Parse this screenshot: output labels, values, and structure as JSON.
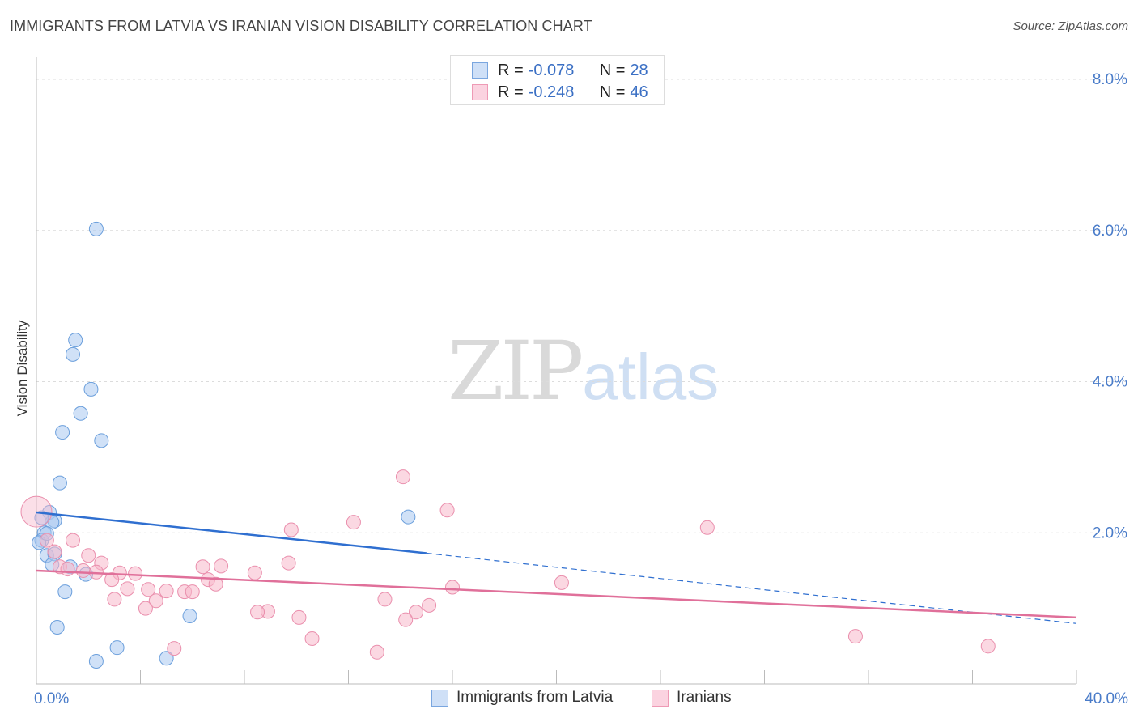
{
  "header": {
    "title": "IMMIGRANTS FROM LATVIA VS IRANIAN VISION DISABILITY CORRELATION CHART",
    "source": "Source: ZipAtlas.com"
  },
  "watermark": {
    "zip": "ZIP",
    "atlas": "atlas"
  },
  "legend": {
    "rows": [
      {
        "r_label": "R = ",
        "r_value": "-0.078",
        "n_label": "N = ",
        "n_value": "28",
        "color": "#a9c8f0"
      },
      {
        "r_label": "R = ",
        "r_value": "-0.248",
        "n_label": "N = ",
        "n_value": "46",
        "color": "#f7b8cb"
      }
    ]
  },
  "bottom_legend": {
    "items": [
      {
        "label": "Immigrants from Latvia",
        "color": "#a9c8f0"
      },
      {
        "label": "Iranians",
        "color": "#f7b8cb"
      }
    ]
  },
  "chart_data": {
    "type": "scatter",
    "title": "IMMIGRANTS FROM LATVIA VS IRANIAN VISION DISABILITY CORRELATION CHART",
    "xlabel": "",
    "ylabel": "Vision Disability",
    "xlim": [
      0,
      40
    ],
    "ylim": [
      0,
      8.3
    ],
    "x_ticks": [
      {
        "value": 0,
        "label": "0.0%"
      },
      {
        "value": 40,
        "label": "40.0%"
      }
    ],
    "y_ticks": [
      {
        "value": 2,
        "label": "2.0%"
      },
      {
        "value": 4,
        "label": "4.0%"
      },
      {
        "value": 6,
        "label": "6.0%"
      },
      {
        "value": 8,
        "label": "8.0%"
      }
    ],
    "grid": "horizontal dashed",
    "legend_position": "top-center",
    "series": [
      {
        "name": "Immigrants from Latvia",
        "color": "#a9c8f0",
        "stroke": "#6b9fdc",
        "trend_color": "#2f6fd0",
        "trend": {
          "x0": 0,
          "y0": 2.27,
          "x1": 15,
          "y1": 1.73,
          "dash_x1": 40,
          "dash_y1": 0.8
        },
        "points": [
          [
            2.3,
            6.02
          ],
          [
            1.5,
            4.55
          ],
          [
            1.4,
            4.36
          ],
          [
            2.1,
            3.9
          ],
          [
            1.7,
            3.58
          ],
          [
            1.0,
            3.33
          ],
          [
            2.5,
            3.22
          ],
          [
            0.9,
            2.66
          ],
          [
            0.5,
            2.27
          ],
          [
            0.7,
            2.16
          ],
          [
            0.6,
            2.14
          ],
          [
            0.2,
            2.2
          ],
          [
            0.3,
            2.0
          ],
          [
            0.2,
            1.9
          ],
          [
            0.4,
            1.7
          ],
          [
            0.7,
            1.72
          ],
          [
            0.6,
            1.58
          ],
          [
            1.3,
            1.55
          ],
          [
            1.9,
            1.45
          ],
          [
            1.1,
            1.22
          ],
          [
            0.8,
            0.75
          ],
          [
            5.9,
            0.9
          ],
          [
            3.1,
            0.48
          ],
          [
            2.3,
            0.3
          ],
          [
            5.0,
            0.34
          ],
          [
            14.3,
            2.21
          ],
          [
            0.1,
            1.87
          ],
          [
            0.4,
            1.99
          ]
        ]
      },
      {
        "name": "Iranians",
        "color": "#f7b8cb",
        "stroke": "#ea8fad",
        "trend_color": "#e0709a",
        "trend": {
          "x0": 0,
          "y0": 1.5,
          "x1": 40,
          "y1": 0.88
        },
        "points": [
          [
            0.0,
            2.28
          ],
          [
            0.4,
            1.9
          ],
          [
            1.4,
            1.9
          ],
          [
            0.7,
            1.75
          ],
          [
            2.0,
            1.7
          ],
          [
            2.5,
            1.6
          ],
          [
            0.9,
            1.55
          ],
          [
            1.2,
            1.52
          ],
          [
            1.8,
            1.5
          ],
          [
            2.3,
            1.48
          ],
          [
            3.2,
            1.47
          ],
          [
            3.8,
            1.46
          ],
          [
            2.9,
            1.38
          ],
          [
            4.3,
            1.25
          ],
          [
            3.5,
            1.26
          ],
          [
            5.0,
            1.23
          ],
          [
            4.6,
            1.1
          ],
          [
            3.0,
            1.12
          ],
          [
            4.2,
            1.0
          ],
          [
            5.7,
            1.22
          ],
          [
            6.0,
            1.22
          ],
          [
            6.4,
            1.55
          ],
          [
            6.6,
            1.38
          ],
          [
            7.1,
            1.56
          ],
          [
            6.9,
            1.32
          ],
          [
            8.4,
            1.47
          ],
          [
            9.8,
            2.04
          ],
          [
            9.7,
            1.6
          ],
          [
            8.9,
            0.96
          ],
          [
            8.5,
            0.95
          ],
          [
            10.1,
            0.88
          ],
          [
            10.6,
            0.6
          ],
          [
            12.2,
            2.14
          ],
          [
            13.4,
            1.12
          ],
          [
            14.1,
            2.74
          ],
          [
            15.8,
            2.3
          ],
          [
            16.0,
            1.28
          ],
          [
            14.6,
            0.95
          ],
          [
            15.1,
            1.04
          ],
          [
            14.2,
            0.85
          ],
          [
            13.1,
            0.42
          ],
          [
            5.3,
            0.47
          ],
          [
            20.2,
            1.34
          ],
          [
            25.8,
            2.07
          ],
          [
            31.5,
            0.63
          ],
          [
            36.6,
            0.5
          ]
        ]
      }
    ]
  }
}
